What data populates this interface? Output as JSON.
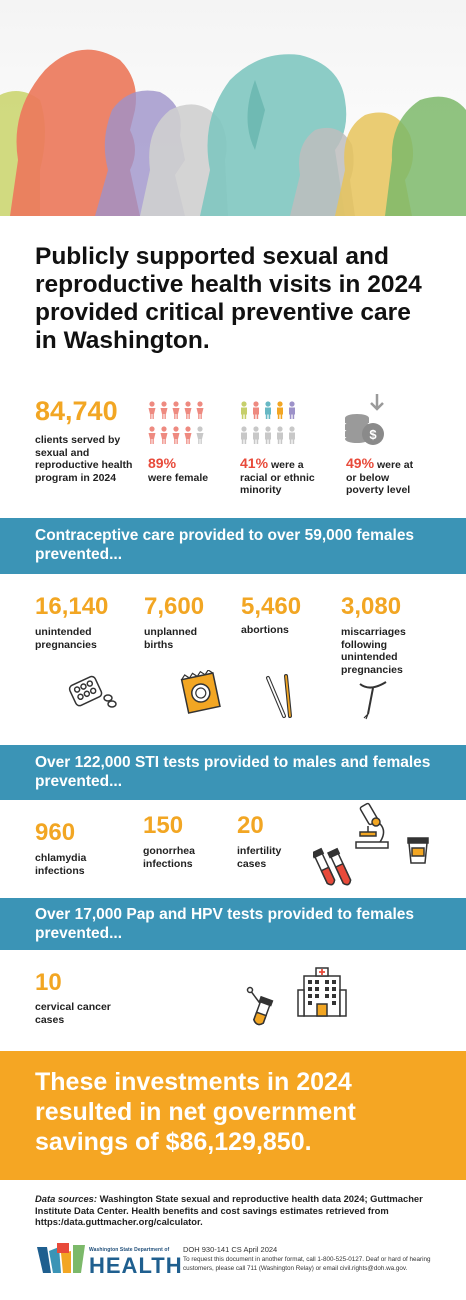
{
  "headline": "Publicly supported sexual and reproductive health visits in 2024 provided critical preventive care in Washington.",
  "clients": {
    "number": "84,740",
    "description": "clients served by sexual and reproductive health program in 2024"
  },
  "female_stat": {
    "pct": "89%",
    "text": "were female"
  },
  "minority_stat": {
    "pct": "41%",
    "text": "were a racial or ethnic minority"
  },
  "poverty_stat": {
    "pct": "49%",
    "text": "were at or below poverty level"
  },
  "contraceptive": {
    "header": "Contraceptive care provided to over 59,000 females prevented...",
    "items": [
      {
        "number": "16,140",
        "label": "unintended pregnancies"
      },
      {
        "number": "7,600",
        "label": "unplanned births"
      },
      {
        "number": "5,460",
        "label": "abortions"
      },
      {
        "number": "3,080",
        "label": "miscarriages following unintended pregnancies"
      }
    ]
  },
  "sti": {
    "header": "Over 122,000 STI tests provided to males and females prevented...",
    "items": [
      {
        "number": "960",
        "label": "chlamydia infections"
      },
      {
        "number": "150",
        "label": "gonorrhea infections"
      },
      {
        "number": "20",
        "label": "infertility cases"
      }
    ]
  },
  "pap": {
    "header": "Over 17,000 Pap and HPV tests provided to females prevented...",
    "items": [
      {
        "number": "10",
        "label": "cervical cancer cases"
      }
    ]
  },
  "savings": "These investments in 2024 resulted in net government savings of $86,129,850.",
  "sources": {
    "label": "Data sources:",
    "text": " Washington State sexual and reproductive health data 2024; Guttmacher Institute Data Center. Health benefits and cost savings estimates retrieved from https:/data.guttmacher.org/calculator."
  },
  "logo": {
    "small": "Washington State Department of",
    "big": "HEALTH"
  },
  "doc": {
    "id": "DOH 930-141   CS   April 2024",
    "request": "To request this document in another format, call 1-800-525-0127. Deaf or hard of hearing customers, please call 711 (Washington Relay) or email civil.rights@doh.wa.gov."
  },
  "colors": {
    "accent_orange": "#f2a623",
    "accent_red": "#e84a3a",
    "band_blue": "#3b94b6",
    "gold_band": "#f5a623"
  },
  "icons": [
    "people-silhouettes-illustration",
    "female-figures-icon",
    "diverse-figures-icon",
    "coins-icon",
    "pill-pack-icon",
    "condom-icon",
    "pen-icon",
    "iud-icon",
    "microscope-icon",
    "test-tubes-icon",
    "specimen-cup-icon",
    "swab-tube-icon",
    "hospital-icon",
    "doh-logo-icon"
  ]
}
